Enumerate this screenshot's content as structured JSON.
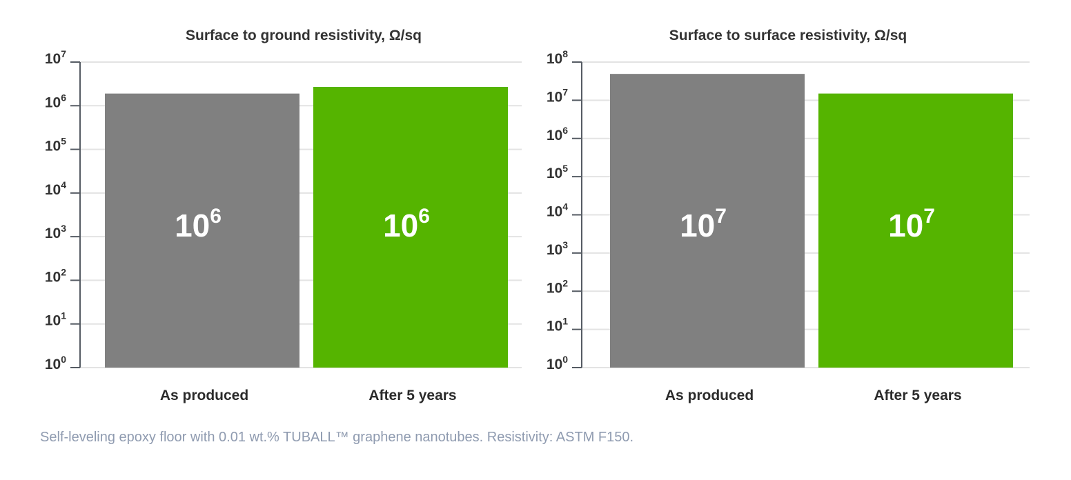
{
  "colors": {
    "as_produced": "#808080",
    "after_5_years": "#55b400",
    "grid": "#e3e3e3",
    "axis": "#555b63"
  },
  "caption": "Self-leveling epoxy floor with 0.01 wt.% TUBALL™ graphene nanotubes. Resistivity: ASTM F150.",
  "chart_data": [
    {
      "type": "bar",
      "title": "Surface to ground resistivity, Ω/sq",
      "y_scale": "log",
      "ylim": [
        1,
        10000000
      ],
      "tick_base": "10",
      "tick_exponents": [
        "0",
        "1",
        "2",
        "3",
        "4",
        "5",
        "6",
        "7"
      ],
      "grid": true,
      "categories": [
        "As produced",
        "After 5 years"
      ],
      "values": [
        1900000,
        2700000
      ],
      "bar_labels": [
        {
          "base": "10",
          "exp": "6"
        },
        {
          "base": "10",
          "exp": "6"
        }
      ],
      "bar_colors": [
        "#808080",
        "#55b400"
      ]
    },
    {
      "type": "bar",
      "title": "Surface to surface resistivity, Ω/sq",
      "y_scale": "log",
      "ylim": [
        1,
        100000000
      ],
      "tick_base": "10",
      "tick_exponents": [
        "0",
        "1",
        "2",
        "3",
        "4",
        "5",
        "6",
        "7",
        "8"
      ],
      "grid": true,
      "categories": [
        "As produced",
        "After 5 years"
      ],
      "values": [
        49000000,
        15000000
      ],
      "bar_labels": [
        {
          "base": "10",
          "exp": "7"
        },
        {
          "base": "10",
          "exp": "7"
        }
      ],
      "bar_colors": [
        "#808080",
        "#55b400"
      ]
    }
  ]
}
